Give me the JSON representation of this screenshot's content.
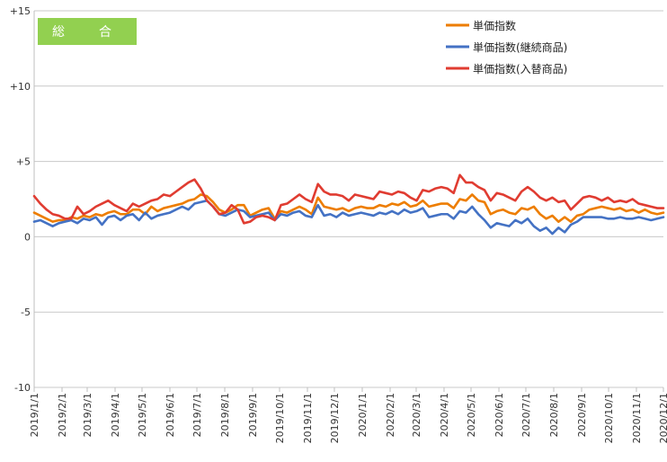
{
  "badge": "総　合",
  "chart_data": {
    "type": "line",
    "title": "",
    "xlabel": "",
    "ylabel": "",
    "ylim": [
      -10,
      15
    ],
    "ytick_values": [
      -10,
      -5,
      0,
      5,
      10,
      15
    ],
    "ytick_labels": [
      "-10",
      "-5",
      "0",
      "+5",
      "+10",
      "+15"
    ],
    "x_tick_labels": [
      "2019/1/1",
      "2019/2/1",
      "2019/3/1",
      "2019/4/1",
      "2019/5/1",
      "2019/6/1",
      "2019/7/1",
      "2019/8/1",
      "2019/9/1",
      "2019/10/1",
      "2019/11/1",
      "2019/12/1",
      "2020/1/1",
      "2020/2/1",
      "2020/3/1",
      "2020/4/1",
      "2020/5/1",
      "2020/6/1",
      "2020/7/1",
      "2020/8/1",
      "2020/9/1",
      "2020/10/1",
      "2020/11/1",
      "2020/12/1"
    ],
    "x_tick_positions": [
      0,
      4.43,
      8.43,
      12.86,
      17.14,
      21.57,
      25.86,
      30.29,
      34.71,
      39,
      43.43,
      47.71,
      52.14,
      56.57,
      60.71,
      65.14,
      69.43,
      73.86,
      78.14,
      82.57,
      87,
      91.29,
      95.71,
      100
    ],
    "grid": "horizontal",
    "legend_position": "top-right",
    "series": [
      {
        "name": "単価指数",
        "color": "#ed7d00",
        "values": [
          1.6,
          1.4,
          1.2,
          1.0,
          1.1,
          1.1,
          1.3,
          1.2,
          1.4,
          1.3,
          1.5,
          1.4,
          1.6,
          1.7,
          1.5,
          1.5,
          1.8,
          1.8,
          1.5,
          2.0,
          1.7,
          1.9,
          2.0,
          2.1,
          2.2,
          2.4,
          2.5,
          2.8,
          2.7,
          2.3,
          1.8,
          1.6,
          1.8,
          2.1,
          2.1,
          1.4,
          1.6,
          1.8,
          1.9,
          1.2,
          1.7,
          1.6,
          1.8,
          2.0,
          1.8,
          1.5,
          2.6,
          2.0,
          1.9,
          1.8,
          1.9,
          1.7,
          1.9,
          2.0,
          1.9,
          1.9,
          2.1,
          2.0,
          2.2,
          2.1,
          2.3,
          2.0,
          2.1,
          2.4,
          2.0,
          2.1,
          2.2,
          2.2,
          1.9,
          2.5,
          2.4,
          2.8,
          2.4,
          2.3,
          1.5,
          1.7,
          1.8,
          1.6,
          1.5,
          1.9,
          1.8,
          2.0,
          1.5,
          1.2,
          1.4,
          1.0,
          1.3,
          1.0,
          1.4,
          1.5,
          1.8,
          1.9,
          2.0,
          1.9,
          1.8,
          1.9,
          1.7,
          1.8,
          1.6,
          1.8,
          1.6,
          1.5,
          1.6
        ]
      },
      {
        "name": "単価指数(継続商品)",
        "color": "#4472c4",
        "values": [
          1.0,
          1.1,
          0.9,
          0.7,
          0.9,
          1.0,
          1.1,
          0.9,
          1.2,
          1.1,
          1.3,
          0.8,
          1.3,
          1.4,
          1.1,
          1.4,
          1.5,
          1.1,
          1.6,
          1.2,
          1.4,
          1.5,
          1.6,
          1.8,
          2.0,
          1.8,
          2.2,
          2.3,
          2.4,
          2.0,
          1.5,
          1.4,
          1.6,
          1.8,
          1.7,
          1.3,
          1.4,
          1.5,
          1.6,
          1.1,
          1.5,
          1.4,
          1.6,
          1.7,
          1.4,
          1.3,
          2.1,
          1.4,
          1.5,
          1.3,
          1.6,
          1.4,
          1.5,
          1.6,
          1.5,
          1.4,
          1.6,
          1.5,
          1.7,
          1.5,
          1.8,
          1.6,
          1.7,
          1.9,
          1.3,
          1.4,
          1.5,
          1.5,
          1.2,
          1.7,
          1.6,
          2.0,
          1.5,
          1.1,
          0.6,
          0.9,
          0.8,
          0.7,
          1.1,
          0.9,
          1.2,
          0.7,
          0.4,
          0.6,
          0.2,
          0.6,
          0.3,
          0.8,
          1.0,
          1.3,
          1.3,
          1.3,
          1.3,
          1.2,
          1.2,
          1.3,
          1.2,
          1.2,
          1.3,
          1.2,
          1.1,
          1.2,
          1.3
        ]
      },
      {
        "name": "単価指数(入替商品)",
        "color": "#e03c31",
        "values": [
          2.7,
          2.2,
          1.8,
          1.5,
          1.4,
          1.2,
          1.2,
          2.0,
          1.5,
          1.7,
          2.0,
          2.2,
          2.4,
          2.1,
          1.9,
          1.7,
          2.2,
          2.0,
          2.2,
          2.4,
          2.5,
          2.8,
          2.7,
          3.0,
          3.3,
          3.6,
          3.8,
          3.2,
          2.4,
          2.0,
          1.5,
          1.6,
          2.1,
          1.8,
          0.9,
          1.0,
          1.3,
          1.4,
          1.3,
          1.1,
          2.1,
          2.2,
          2.5,
          2.8,
          2.5,
          2.3,
          3.5,
          3.0,
          2.8,
          2.8,
          2.7,
          2.4,
          2.8,
          2.7,
          2.6,
          2.5,
          3.0,
          2.9,
          2.8,
          3.0,
          2.9,
          2.6,
          2.4,
          3.1,
          3.0,
          3.2,
          3.3,
          3.2,
          2.9,
          4.1,
          3.6,
          3.6,
          3.3,
          3.1,
          2.4,
          2.9,
          2.8,
          2.6,
          2.4,
          3.0,
          3.3,
          3.0,
          2.6,
          2.4,
          2.6,
          2.3,
          2.4,
          1.8,
          2.2,
          2.6,
          2.7,
          2.6,
          2.4,
          2.6,
          2.3,
          2.4,
          2.3,
          2.5,
          2.2,
          2.1,
          2.0,
          1.9,
          1.9
        ]
      }
    ]
  }
}
